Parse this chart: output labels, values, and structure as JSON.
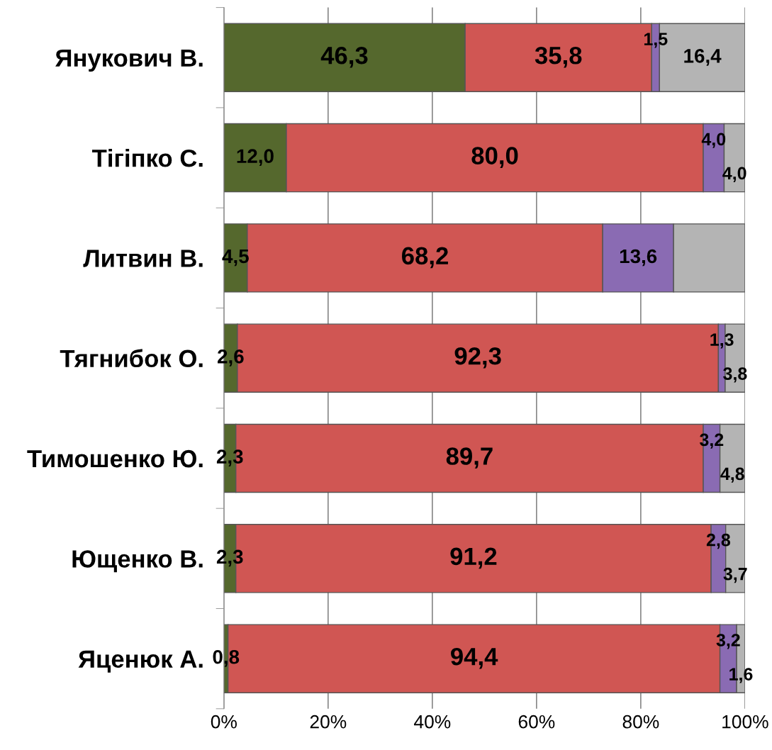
{
  "chart_data": {
    "type": "bar",
    "orientation": "horizontal",
    "stacked": true,
    "categories": [
      "Янукович В.",
      "Тігіпко С.",
      "Литвин В.",
      "Тягнибок О.",
      "Тимошенко Ю.",
      "Ющенко В.",
      "Яценюк А."
    ],
    "series": [
      {
        "color": "#55682d",
        "values": [
          46.3,
          12.0,
          4.5,
          2.6,
          2.3,
          2.3,
          0.8
        ],
        "value_labels": [
          "46,3",
          "12,0",
          "4,5",
          "2,6",
          "2,3",
          "2,3",
          "0,8"
        ]
      },
      {
        "color": "#d05653",
        "values": [
          35.8,
          80.0,
          68.2,
          92.3,
          89.7,
          91.2,
          94.4
        ],
        "value_labels": [
          "35,8",
          "80,0",
          "68,2",
          "92,3",
          "89,7",
          "91,2",
          "94,4"
        ]
      },
      {
        "color": "#8a6bb3",
        "values": [
          1.5,
          4.0,
          13.6,
          1.3,
          3.2,
          2.8,
          3.2
        ],
        "value_labels": [
          "1,5",
          "4,0",
          "13,6",
          "1,3",
          "3,2",
          "2,8",
          "3,2"
        ]
      },
      {
        "color": "#b4b4b4",
        "values": [
          16.4,
          4.0,
          13.7,
          3.8,
          4.8,
          3.7,
          1.6
        ],
        "value_labels": [
          "16,4",
          "4,0",
          null,
          "3,8",
          "4,8",
          "3,7",
          "1,6"
        ]
      }
    ],
    "xlim": [
      0,
      100
    ],
    "xticks": [
      {
        "value": 0,
        "label": "0%"
      },
      {
        "value": 20,
        "label": "20%"
      },
      {
        "value": 40,
        "label": "40%"
      },
      {
        "value": 60,
        "label": "60%"
      },
      {
        "value": 80,
        "label": "80%"
      },
      {
        "value": 100,
        "label": "100%"
      }
    ],
    "grid": "x",
    "legend": false
  }
}
